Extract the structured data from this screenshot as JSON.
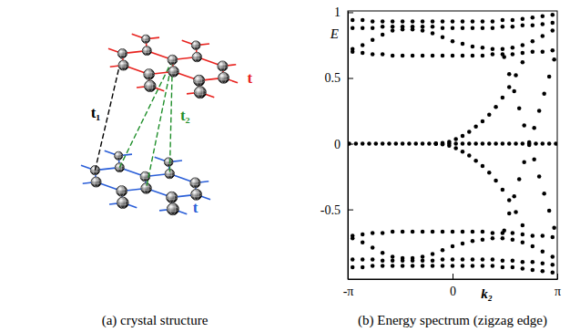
{
  "chart_data": {
    "type": "scatter",
    "title": "(b) Energy spectrum (zigzag edge)",
    "xlabel": "k₂",
    "ylabel": "E",
    "color": "#000000",
    "marker": "circle",
    "grid": false,
    "xlim": [
      -3.14159,
      3.14159
    ],
    "ylim": [
      -1.03,
      1.01
    ],
    "xticks": [
      {
        "value": -3.14159,
        "label": "-π"
      },
      0,
      {
        "value": 3.14159,
        "label": "π"
      }
    ],
    "yticks": [
      -0.5,
      0,
      0.5,
      1
    ],
    "series": [
      {
        "x": [
          -3.1,
          -2.9,
          -2.7,
          -2.5,
          -2.3,
          -2.1,
          -1.9,
          -1.7,
          -1.5,
          -1.3,
          -1.1,
          -0.9,
          -0.7,
          -0.5,
          -0.3,
          -0.1,
          0.1,
          0.3,
          0.5,
          0.7,
          0.9,
          1.1,
          1.3,
          1.5,
          1.7,
          1.9,
          2.1,
          2.3,
          2.5,
          2.7,
          2.9,
          3.1
        ],
        "values": [
          0,
          0,
          0,
          0,
          0,
          0,
          0,
          0,
          0,
          0,
          0,
          0,
          0,
          0,
          0,
          0,
          0,
          0,
          0,
          0,
          0,
          0,
          0,
          0,
          0,
          0,
          0,
          0,
          0,
          0,
          0,
          0
        ]
      },
      {
        "x": [
          -0.5,
          -0.3,
          -0.1,
          0.1,
          0.3,
          0.5,
          0.7,
          0.9,
          1.1,
          1.3,
          1.5,
          1.7,
          1.9,
          2.1
        ],
        "values": [
          0.0,
          0.005,
          0.015,
          0.035,
          0.06,
          0.09,
          0.13,
          0.17,
          0.22,
          0.28,
          0.35,
          0.43,
          0.52,
          0.62
        ]
      },
      {
        "x": [
          -0.5,
          -0.3,
          -0.1,
          0.1,
          0.3,
          0.5,
          0.7,
          0.9,
          1.1,
          1.3,
          1.5,
          1.7,
          1.9,
          2.1
        ],
        "values": [
          0.0,
          -0.005,
          -0.015,
          -0.035,
          -0.06,
          -0.09,
          -0.13,
          -0.17,
          -0.22,
          -0.28,
          -0.35,
          -0.43,
          -0.52,
          -0.62
        ]
      },
      {
        "x": [
          1.55,
          1.7,
          1.85,
          2.0,
          2.15,
          2.3,
          2.45,
          2.6,
          2.75,
          2.9,
          3.05
        ],
        "values": [
          -0.66,
          -0.53,
          -0.4,
          -0.27,
          -0.14,
          -0.01,
          0.12,
          0.25,
          0.38,
          0.51,
          0.64
        ]
      },
      {
        "x": [
          1.55,
          1.7,
          1.85,
          2.0,
          2.15,
          2.3,
          2.45,
          2.6,
          2.75,
          2.9,
          3.05
        ],
        "values": [
          0.66,
          0.53,
          0.4,
          0.27,
          0.14,
          0.01,
          -0.12,
          -0.25,
          -0.38,
          -0.51,
          -0.64
        ]
      },
      {
        "x": [
          -3.0,
          -2.7,
          -2.4,
          -2.1,
          -1.8,
          -1.5,
          -1.2,
          -0.9,
          -0.6,
          -0.3,
          0,
          0.3,
          0.6,
          0.9,
          1.2,
          1.5,
          1.8,
          2.1,
          2.4,
          2.7,
          3.0
        ],
        "values": [
          0.7,
          0.69,
          0.68,
          0.68,
          0.67,
          0.67,
          0.67,
          0.67,
          0.67,
          0.67,
          0.67,
          0.67,
          0.67,
          0.67,
          0.68,
          0.68,
          0.68,
          0.69,
          0.7,
          0.7,
          0.71
        ]
      },
      {
        "x": [
          -3.0,
          -2.7,
          -2.4,
          -2.1,
          -1.8,
          -1.5,
          -1.2,
          -0.9,
          -0.6,
          -0.3,
          0,
          0.3,
          0.6,
          0.9,
          1.2,
          1.5,
          1.8,
          2.1,
          2.4,
          2.7,
          3.0
        ],
        "values": [
          0.72,
          0.75,
          0.79,
          0.83,
          0.86,
          0.87,
          0.87,
          0.86,
          0.84,
          0.81,
          0.78,
          0.76,
          0.74,
          0.73,
          0.72,
          0.72,
          0.73,
          0.75,
          0.78,
          0.82,
          0.86
        ]
      },
      {
        "x": [
          -3.0,
          -2.7,
          -2.4,
          -2.1,
          -1.8,
          -1.5,
          -1.2,
          -0.9,
          -0.6,
          -0.3,
          0,
          0.3,
          0.6,
          0.9,
          1.2,
          1.5,
          1.8,
          2.1,
          2.4,
          2.7,
          3.0
        ],
        "values": [
          0.88,
          0.88,
          0.88,
          0.89,
          0.89,
          0.89,
          0.89,
          0.89,
          0.89,
          0.88,
          0.88,
          0.88,
          0.88,
          0.88,
          0.88,
          0.89,
          0.89,
          0.9,
          0.9,
          0.91,
          0.92
        ]
      },
      {
        "x": [
          -3.0,
          -2.7,
          -2.4,
          -2.1,
          -1.8,
          -1.5,
          -1.2,
          -0.9,
          -0.6,
          -0.3,
          0,
          0.3,
          0.6,
          0.9,
          1.2,
          1.5,
          1.8,
          2.1,
          2.4,
          2.7,
          3.0
        ],
        "values": [
          0.94,
          0.94,
          0.93,
          0.93,
          0.93,
          0.93,
          0.93,
          0.93,
          0.93,
          0.93,
          0.93,
          0.93,
          0.93,
          0.93,
          0.93,
          0.94,
          0.94,
          0.95,
          0.96,
          0.97,
          0.98
        ]
      },
      {
        "x": [
          -3.0,
          -2.7,
          -2.4,
          -2.1,
          -1.8,
          -1.5,
          -1.2,
          -0.9,
          -0.6,
          -0.3,
          0,
          0.3,
          0.6,
          0.9,
          1.2,
          1.5,
          1.8,
          2.1,
          2.4,
          2.7,
          3.0
        ],
        "values": [
          -0.7,
          -0.69,
          -0.68,
          -0.68,
          -0.67,
          -0.67,
          -0.67,
          -0.67,
          -0.67,
          -0.67,
          -0.67,
          -0.67,
          -0.67,
          -0.67,
          -0.68,
          -0.68,
          -0.68,
          -0.69,
          -0.7,
          -0.7,
          -0.71
        ]
      },
      {
        "x": [
          -3.0,
          -2.7,
          -2.4,
          -2.1,
          -1.8,
          -1.5,
          -1.2,
          -0.9,
          -0.6,
          -0.3,
          0,
          0.3,
          0.6,
          0.9,
          1.2,
          1.5,
          1.8,
          2.1,
          2.4,
          2.7,
          3.0
        ],
        "values": [
          -0.72,
          -0.75,
          -0.79,
          -0.83,
          -0.86,
          -0.87,
          -0.87,
          -0.86,
          -0.84,
          -0.81,
          -0.78,
          -0.76,
          -0.74,
          -0.73,
          -0.72,
          -0.72,
          -0.73,
          -0.75,
          -0.78,
          -0.82,
          -0.86
        ]
      },
      {
        "x": [
          -3.0,
          -2.7,
          -2.4,
          -2.1,
          -1.8,
          -1.5,
          -1.2,
          -0.9,
          -0.6,
          -0.3,
          0,
          0.3,
          0.6,
          0.9,
          1.2,
          1.5,
          1.8,
          2.1,
          2.4,
          2.7,
          3.0
        ],
        "values": [
          -0.88,
          -0.88,
          -0.88,
          -0.89,
          -0.89,
          -0.89,
          -0.89,
          -0.89,
          -0.89,
          -0.88,
          -0.88,
          -0.88,
          -0.88,
          -0.88,
          -0.88,
          -0.89,
          -0.89,
          -0.9,
          -0.9,
          -0.91,
          -0.92
        ]
      },
      {
        "x": [
          -3.0,
          -2.7,
          -2.4,
          -2.1,
          -1.8,
          -1.5,
          -1.2,
          -0.9,
          -0.6,
          -0.3,
          0,
          0.3,
          0.6,
          0.9,
          1.2,
          1.5,
          1.8,
          2.1,
          2.4,
          2.7,
          3.0
        ],
        "values": [
          -0.94,
          -0.94,
          -0.93,
          -0.93,
          -0.93,
          -0.93,
          -0.93,
          -0.93,
          -0.93,
          -0.93,
          -0.93,
          -0.93,
          -0.93,
          -0.93,
          -0.93,
          -0.94,
          -0.94,
          -0.95,
          -0.96,
          -0.97,
          -0.98
        ]
      }
    ]
  },
  "diagram": {
    "caption": "(a) crystal structure",
    "labels": [
      {
        "text": "t",
        "color": "#e8231f"
      },
      {
        "text": "t₁",
        "color": "#000000"
      },
      {
        "text": "t₂",
        "color": "#1f8f2a"
      },
      {
        "text": "t",
        "color": "#2b5fd8"
      }
    ]
  }
}
